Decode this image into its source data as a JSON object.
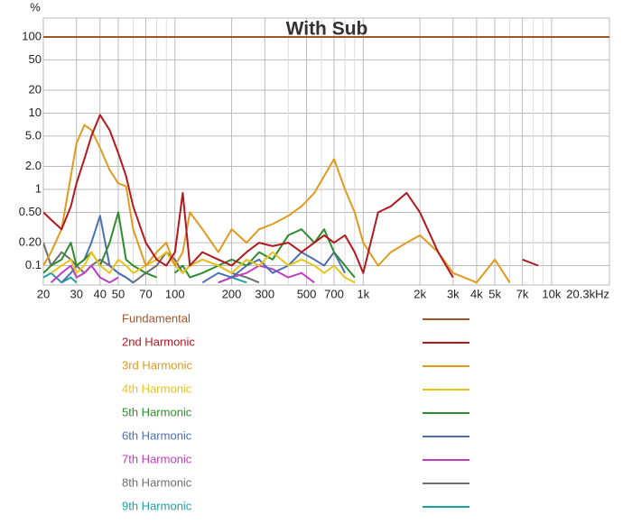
{
  "chart_data": {
    "type": "line",
    "title": "With Sub",
    "ylabel": "%",
    "xlog": true,
    "ylog": true,
    "grid": true,
    "xlim": [
      20,
      20300
    ],
    "ylim": [
      0.0557,
      177
    ],
    "xticks": [
      20,
      30,
      40,
      50,
      70,
      100,
      200,
      300,
      500,
      700,
      {
        "value": 1000,
        "label": "1k"
      },
      {
        "value": 2000,
        "label": "2k"
      },
      {
        "value": 3000,
        "label": "3k"
      },
      {
        "value": 4000,
        "label": "4k"
      },
      {
        "value": 5000,
        "label": "5k"
      },
      {
        "value": 7000,
        "label": "7k"
      },
      {
        "value": 10000,
        "label": "10k"
      },
      {
        "value": 20300,
        "label": "20.3kHz"
      }
    ],
    "x_minor_grid": [
      60,
      80,
      90,
      400,
      600,
      800,
      900,
      6000,
      8000,
      9000
    ],
    "yticks": [
      100,
      50,
      20,
      10,
      {
        "value": 5,
        "label": "5.0"
      },
      {
        "value": 2,
        "label": "2.0"
      },
      1,
      {
        "value": 0.5,
        "label": "0.50"
      },
      {
        "value": 0.2,
        "label": "0.20"
      },
      0.1
    ],
    "x": [
      20,
      22,
      25,
      28,
      30,
      33,
      36,
      40,
      45,
      50,
      55,
      60,
      70,
      80,
      90,
      100,
      110,
      120,
      140,
      170,
      200,
      240,
      280,
      330,
      400,
      470,
      550,
      620,
      700,
      800,
      900,
      1000,
      1200,
      1400,
      1700,
      2000,
      2500,
      3000,
      4000,
      5000,
      6000,
      7000,
      8500,
      10000,
      20300
    ],
    "series": [
      {
        "name": "Fundamental",
        "color": "#a5532a",
        "values": [
          100,
          100,
          100,
          100,
          100,
          100,
          100,
          100,
          100,
          100,
          100,
          100,
          100,
          100,
          100,
          100,
          100,
          100,
          100,
          100,
          100,
          100,
          100,
          100,
          100,
          100,
          100,
          100,
          100,
          100,
          100,
          100,
          100,
          100,
          100,
          100,
          100,
          100,
          100,
          100,
          100,
          100,
          100,
          100,
          100
        ]
      },
      {
        "name": "2nd Harmonic",
        "color": "#b3181e",
        "values": [
          0.5,
          0.4,
          0.3,
          0.6,
          1.2,
          2.5,
          5,
          9.5,
          6,
          3,
          1.5,
          0.6,
          0.2,
          0.12,
          0.1,
          0.15,
          0.9,
          0.1,
          0.15,
          0.12,
          0.1,
          0.15,
          0.2,
          0.18,
          0.2,
          0.15,
          0.2,
          0.25,
          0.2,
          0.25,
          0.15,
          0.08,
          0.5,
          0.6,
          0.9,
          0.5,
          0.15,
          0.07,
          null,
          null,
          null,
          0.12,
          0.1,
          null,
          null
        ]
      },
      {
        "name": "3rd Harmonic",
        "color": "#e09a1e",
        "values": [
          0.1,
          0.15,
          0.3,
          1.5,
          4,
          7,
          6,
          3.5,
          1.8,
          1.2,
          1.1,
          0.3,
          0.1,
          0.15,
          0.2,
          0.1,
          0.15,
          0.5,
          0.3,
          0.15,
          0.3,
          0.2,
          0.3,
          0.35,
          0.45,
          0.6,
          0.9,
          1.5,
          2.5,
          1.0,
          0.5,
          0.2,
          0.1,
          0.15,
          0.2,
          0.25,
          0.15,
          0.08,
          0.06,
          0.12,
          0.06,
          null,
          null,
          null,
          null
        ]
      },
      {
        "name": "4th Harmonic",
        "color": "#e8c41a",
        "values": [
          null,
          0.08,
          0.1,
          0.12,
          0.08,
          0.1,
          0.15,
          0.1,
          0.08,
          0.12,
          0.1,
          0.08,
          0.1,
          0.12,
          0.15,
          0.1,
          0.08,
          0.1,
          0.12,
          0.1,
          0.08,
          0.12,
          0.1,
          0.15,
          0.1,
          0.12,
          0.1,
          0.08,
          0.1,
          0.07,
          0.06,
          null,
          null,
          null,
          null,
          null,
          null,
          null,
          null,
          null,
          null,
          null,
          null,
          null,
          null
        ]
      },
      {
        "name": "5th Harmonic",
        "color": "#2e8b2e",
        "values": [
          0.08,
          0.1,
          0.12,
          0.2,
          0.1,
          0.12,
          0.15,
          0.1,
          0.2,
          0.5,
          0.12,
          0.1,
          0.08,
          0.07,
          null,
          0.08,
          0.1,
          0.07,
          0.08,
          0.1,
          0.12,
          0.1,
          0.15,
          0.12,
          0.25,
          0.3,
          0.2,
          0.3,
          0.15,
          0.1,
          0.07,
          null,
          null,
          null,
          null,
          null,
          null,
          null,
          null,
          null,
          null,
          null,
          null,
          null,
          null
        ]
      },
      {
        "name": "6th Harmonic",
        "color": "#4a6fb5",
        "values": [
          null,
          null,
          0.06,
          0.08,
          0.1,
          0.12,
          0.2,
          0.45,
          0.1,
          0.08,
          0.07,
          0.06,
          null,
          null,
          null,
          null,
          null,
          null,
          0.06,
          0.08,
          0.07,
          0.1,
          0.12,
          0.08,
          0.1,
          0.15,
          0.12,
          0.1,
          0.15,
          0.08,
          null,
          null,
          null,
          null,
          null,
          null,
          null,
          null,
          null,
          null,
          null,
          null,
          null,
          null,
          null
        ]
      },
      {
        "name": "7th Harmonic",
        "color": "#c03cc0",
        "values": [
          null,
          0.06,
          0.08,
          0.1,
          0.07,
          0.08,
          0.1,
          0.07,
          0.06,
          0.07,
          null,
          null,
          null,
          null,
          null,
          null,
          null,
          null,
          null,
          0.06,
          0.07,
          0.08,
          0.1,
          0.09,
          0.07,
          0.08,
          0.06,
          null,
          null,
          null,
          null,
          null,
          null,
          null,
          null,
          null,
          null,
          null,
          null,
          null,
          null,
          null,
          null,
          null,
          null
        ]
      },
      {
        "name": "8th Harmonic",
        "color": "#6e6e6e",
        "values": [
          0.2,
          0.1,
          0.15,
          0.12,
          0.1,
          0.08,
          0.1,
          0.12,
          0.1,
          0.08,
          0.07,
          0.06,
          0.08,
          0.1,
          0.15,
          0.12,
          0.08,
          0.1,
          0.12,
          0.1,
          0.08,
          0.07,
          0.06,
          null,
          null,
          null,
          null,
          null,
          null,
          null,
          null,
          null,
          null,
          null,
          null,
          null,
          null,
          null,
          null,
          null,
          null,
          null,
          null,
          null,
          null
        ]
      },
      {
        "name": "9th Harmonic",
        "color": "#1fa0a0",
        "values": [
          0.07,
          0.08,
          0.06,
          0.07,
          0.06,
          null,
          null,
          null,
          null,
          null,
          null,
          null,
          null,
          null,
          null,
          null,
          null,
          null,
          null,
          0.06,
          0.07,
          0.06,
          null,
          null,
          null,
          null,
          null,
          null,
          null,
          null,
          null,
          null,
          null,
          null,
          null,
          null,
          null,
          null,
          null,
          null,
          null,
          null,
          null,
          null,
          null
        ]
      }
    ]
  }
}
